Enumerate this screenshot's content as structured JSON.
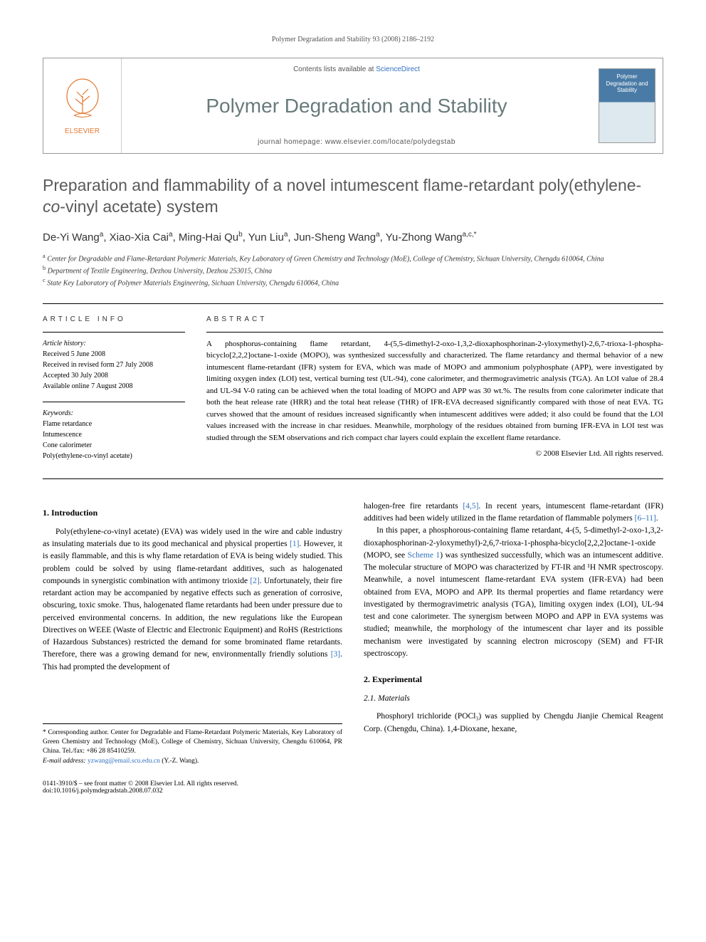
{
  "running_header": "Polymer Degradation and Stability 93 (2008) 2186–2192",
  "journal_box": {
    "publisher": "ELSEVIER",
    "contents_prefix": "Contents lists available at ",
    "contents_link": "ScienceDirect",
    "journal_name": "Polymer Degradation and Stability",
    "homepage_prefix": "journal homepage: ",
    "homepage_url": "www.elsevier.com/locate/polydegstab",
    "cover_title": "Polymer Degradation and Stability"
  },
  "title_part1": "Preparation and flammability of a novel intumescent flame-retardant poly(ethylene-",
  "title_italic": "co",
  "title_part2": "-vinyl acetate) system",
  "authors": [
    {
      "name": "De-Yi Wang",
      "aff": "a"
    },
    {
      "name": "Xiao-Xia Cai",
      "aff": "a"
    },
    {
      "name": "Ming-Hai Qu",
      "aff": "b"
    },
    {
      "name": "Yun Liu",
      "aff": "a"
    },
    {
      "name": "Jun-Sheng Wang",
      "aff": "a"
    },
    {
      "name": "Yu-Zhong Wang",
      "aff": "a,c,*"
    }
  ],
  "affiliations": {
    "a": "Center for Degradable and Flame-Retardant Polymeric Materials, Key Laboratory of Green Chemistry and Technology (MoE), College of Chemistry, Sichuan University, Chengdu 610064, China",
    "b": "Department of Textile Engineering, Dezhou University, Dezhou 253015, China",
    "c": "State Key Laboratory of Polymer Materials Engineering, Sichuan University, Chengdu 610064, China"
  },
  "info": {
    "heading": "ARTICLE INFO",
    "history_label": "Article history:",
    "history": [
      "Received 5 June 2008",
      "Received in revised form 27 July 2008",
      "Accepted 30 July 2008",
      "Available online 7 August 2008"
    ],
    "keywords_label": "Keywords:",
    "keywords": [
      "Flame retardance",
      "Intumescence",
      "Cone calorimeter",
      "Poly(ethylene-co-vinyl acetate)"
    ]
  },
  "abstract": {
    "heading": "ABSTRACT",
    "text": "A phosphorus-containing flame retardant, 4-(5,5-dimethyl-2-oxo-1,3,2-dioxaphosphorinan-2-yloxymethyl)-2,6,7-trioxa-1-phospha-bicyclo[2,2,2]octane-1-oxide (MOPO), was synthesized successfully and characterized. The flame retardancy and thermal behavior of a new intumescent flame-retardant (IFR) system for EVA, which was made of MOPO and ammonium polyphosphate (APP), were investigated by limiting oxygen index (LOI) test, vertical burning test (UL-94), cone calorimeter, and thermogravimetric analysis (TGA). An LOI value of 28.4 and UL-94 V-0 rating can be achieved when the total loading of MOPO and APP was 30 wt.%. The results from cone calorimeter indicate that both the heat release rate (HRR) and the total heat release (THR) of IFR-EVA decreased significantly compared with those of neat EVA. TG curves showed that the amount of residues increased significantly when intumescent additives were added; it also could be found that the LOI values increased with the increase in char residues. Meanwhile, morphology of the residues obtained from burning IFR-EVA in LOI test was studied through the SEM observations and rich compact char layers could explain the excellent flame retardance.",
    "copyright": "© 2008 Elsevier Ltd. All rights reserved."
  },
  "sections": {
    "intro_heading": "1. Introduction",
    "intro_p1a": "Poly(ethylene-",
    "intro_p1_italic": "co",
    "intro_p1b": "-vinyl acetate) (EVA) was widely used in the wire and cable industry as insulating materials due to its good mechanical and physical properties ",
    "intro_p1_ref1": "[1]",
    "intro_p1c": ". However, it is easily flammable, and this is why flame retardation of EVA is being widely studied. This problem could be solved by using flame-retardant additives, such as halogenated compounds in synergistic combination with antimony trioxide ",
    "intro_p1_ref2": "[2]",
    "intro_p1d": ". Unfortunately, their fire retardant action may be accompanied by negative effects such as generation of corrosive, obscuring, toxic smoke. Thus, halogenated flame retardants had been under pressure due to perceived environmental concerns. In addition, the new regulations like the European Directives on WEEE (Waste of Electric and Electronic Equipment) and RoHS (Restrictions of Hazardous Substances) restricted the demand for some brominated flame retardants. Therefore, there was a growing demand for new, environmentally friendly solutions ",
    "intro_p1_ref3": "[3]",
    "intro_p1e": ". This had prompted the development of ",
    "intro_p2a": "halogen-free fire retardants ",
    "intro_p2_ref1": "[4,5]",
    "intro_p2b": ". In recent years, intumescent flame-retardant (IFR) additives had been widely utilized in the flame retardation of flammable polymers ",
    "intro_p2_ref2": "[6–11]",
    "intro_p2c": ".",
    "intro_p3a": "In this paper, a phosphorous-containing flame retardant, 4-(5, 5-dimethyl-2-oxo-1,3,2-dioxaphosphorinan-2-yloxymethyl)-2,6,7-trioxa-1-phospha-bicyclo[2,2,2]octane-1-oxide (MOPO, see ",
    "intro_p3_ref1": "Scheme 1",
    "intro_p3b": ") was synthesized successfully, which was an intumescent additive. The molecular structure of MOPO was characterized by FT-IR and ¹H NMR spectroscopy. Meanwhile, a novel intumescent flame-retardant EVA system (IFR-EVA) had been obtained from EVA, MOPO and APP. Its thermal properties and flame retardancy were investigated by thermogravimetric analysis (TGA), limiting oxygen index (LOI), UL-94 test and cone calorimeter. The synergism between MOPO and APP in EVA systems was studied; meanwhile, the morphology of the intumescent char layer and its possible mechanism were investigated by scanning electron microscopy (SEM) and FT-IR spectroscopy.",
    "exp_heading": "2. Experimental",
    "materials_heading": "2.1. Materials",
    "materials_p1": "Phosphoryl trichloride (POCl₃) was supplied by Chengdu Jianjie Chemical Reagent Corp. (Chengdu, China). 1,4-Dioxane, hexane,"
  },
  "footnote": {
    "corr": "* Corresponding author. Center for Degradable and Flame-Retardant Polymeric Materials, Key Laboratory of Green Chemistry and Technology (MoE), College of Chemistry, Sichuan University, Chengdu 610064, PR China. Tel./fax: +86 28 85410259.",
    "email_label": "E-mail address: ",
    "email": "yzwang@email.scu.edu.cn",
    "email_suffix": " (Y.-Z. Wang)."
  },
  "footer": {
    "left1": "0141-3910/$ – see front matter © 2008 Elsevier Ltd. All rights reserved.",
    "left2": "doi:10.1016/j.polymdegradstab.2008.07.032"
  }
}
